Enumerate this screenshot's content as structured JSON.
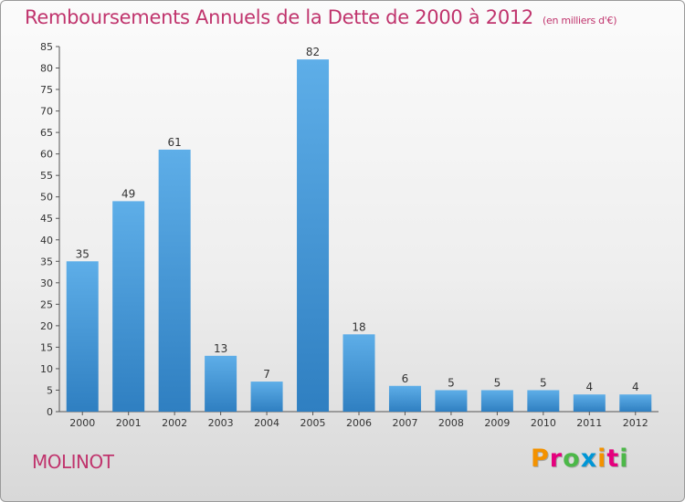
{
  "header": {
    "title": "Remboursements Annuels de la Dette de 2000 à 2012",
    "subtitle": "(en milliers d'€)"
  },
  "footer": {
    "city": "MOLINOT",
    "logo": "Proxiti"
  },
  "colors": {
    "title": "#c0346d",
    "bar_top": "#5eaee8",
    "bar_bottom": "#2f7fc1",
    "logo_letters": [
      "#f39200",
      "#e5007d",
      "#4cb848",
      "#0096d6",
      "#f39200",
      "#e5007d",
      "#4cb848"
    ]
  },
  "chart_data": {
    "type": "bar",
    "categories": [
      "2000",
      "2001",
      "2002",
      "2003",
      "2004",
      "2005",
      "2006",
      "2007",
      "2008",
      "2009",
      "2010",
      "2011",
      "2012"
    ],
    "values": [
      35,
      49,
      61,
      13,
      7,
      82,
      18,
      6,
      5,
      5,
      5,
      4,
      4
    ],
    "ylim": [
      0,
      85
    ],
    "yticks": [
      0,
      5,
      10,
      15,
      20,
      25,
      30,
      35,
      40,
      45,
      50,
      55,
      60,
      65,
      70,
      75,
      80,
      85
    ],
    "grid": false,
    "data_labels": true
  }
}
